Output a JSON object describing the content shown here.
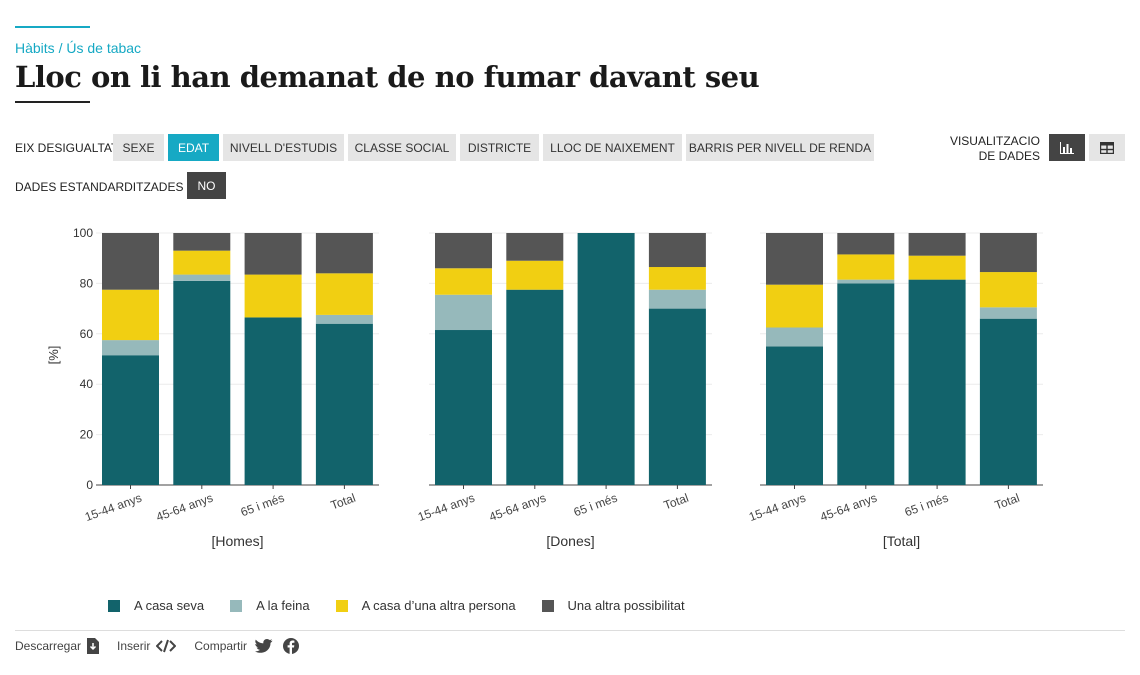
{
  "breadcrumb": "Hàbits / Ús de tabac",
  "title": "Lloc on li han demanat de no fumar davant seu",
  "controls": {
    "eix_label": "EIX DESIGUALTAT",
    "eix_options": [
      "SEXE",
      "EDAT",
      "NIVELL D'ESTUDIS",
      "CLASSE SOCIAL",
      "DISTRICTE",
      "LLOC DE NAIXEMENT",
      "BARRIS PER NIVELL DE RENDA"
    ],
    "eix_selected": "EDAT",
    "std_label": "DADES ESTANDARDITZADES",
    "std_value": "NO",
    "viz_label_line1": "VISUALITZACIO",
    "viz_label_line2": "DE DADES"
  },
  "icons": {
    "chart_view": "bar-chart-icon",
    "table_view": "table-icon",
    "download": "download-icon",
    "embed": "code-icon",
    "twitter": "twitter-icon",
    "facebook": "facebook-icon"
  },
  "colors": {
    "A casa seva": "#12636b",
    "A la feina": "#96b9bb",
    "A casa d’una altra persona": "#f1cf12",
    "Una altra possibilitat": "#555555",
    "accent": "#16a9c4"
  },
  "chart_data": {
    "type": "bar",
    "stacked": true,
    "ylabel": "[%]",
    "ylim": [
      0,
      100
    ],
    "yticks": [
      0,
      20,
      40,
      60,
      80,
      100
    ],
    "categories": [
      "15-44 anys",
      "45-64 anys",
      "65 i més",
      "Total"
    ],
    "panels": [
      {
        "name": "[Homes]",
        "series": [
          {
            "name": "A casa seva",
            "values": [
              51.5,
              81,
              66.5,
              64
            ]
          },
          {
            "name": "A la feina",
            "values": [
              6,
              2.5,
              0,
              3.5
            ]
          },
          {
            "name": "A casa d’una altra persona",
            "values": [
              20,
              9.5,
              17,
              16.5
            ]
          },
          {
            "name": "Una altra possibilitat",
            "values": [
              22.5,
              7,
              16.5,
              16
            ]
          }
        ]
      },
      {
        "name": "[Dones]",
        "series": [
          {
            "name": "A casa seva",
            "values": [
              61.5,
              77.5,
              100,
              70
            ]
          },
          {
            "name": "A la feina",
            "values": [
              14,
              0,
              0,
              7.5
            ]
          },
          {
            "name": "A casa d’una altra persona",
            "values": [
              10.5,
              11.5,
              0,
              9
            ]
          },
          {
            "name": "Una altra possibilitat",
            "values": [
              14,
              11,
              0,
              13.5
            ]
          }
        ]
      },
      {
        "name": "[Total]",
        "series": [
          {
            "name": "A casa seva",
            "values": [
              55,
              80,
              81.5,
              66
            ]
          },
          {
            "name": "A la feina",
            "values": [
              7.5,
              1.5,
              0,
              4.5
            ]
          },
          {
            "name": "A casa d’una altra persona",
            "values": [
              17,
              10,
              9.5,
              14
            ]
          },
          {
            "name": "Una altra possibilitat",
            "values": [
              20.5,
              8.5,
              9,
              15.5
            ]
          }
        ]
      }
    ],
    "legend": [
      "A casa seva",
      "A la feina",
      "A casa d’una altra persona",
      "Una altra possibilitat"
    ],
    "legend_position": "bottom",
    "grid": true
  },
  "footer": {
    "download": "Descarregar",
    "embed": "Inserir",
    "share": "Compartir"
  }
}
